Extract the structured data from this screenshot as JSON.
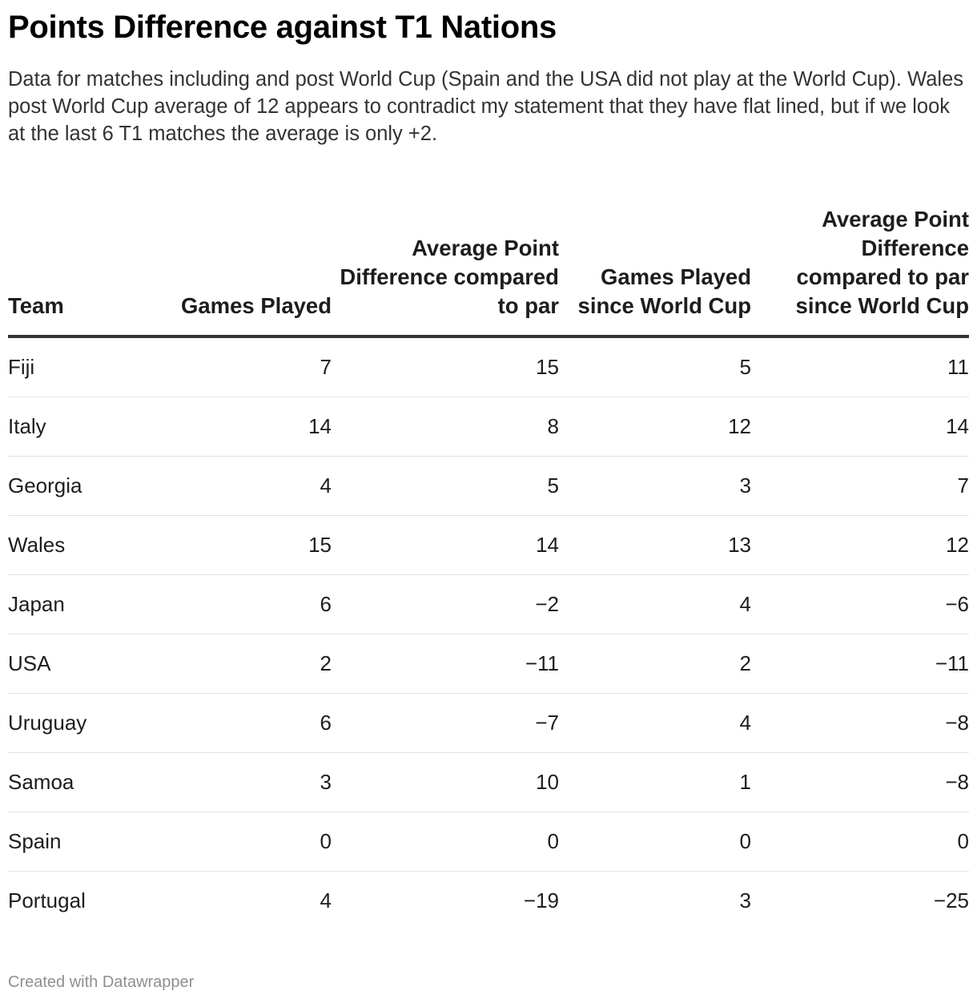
{
  "title": "Points Difference against T1 Nations",
  "subtitle": "Data for matches including and post World Cup (Spain and the USA did not play at the World Cup). Wales post World Cup average of 12 appears to contradict my statement that they have flat lined, but if we look at the last 6 T1 matches the average is only +2.",
  "footer": "Created with Datawrapper",
  "chart_data": {
    "type": "table",
    "title": "Points Difference against T1 Nations",
    "columns": [
      "Team",
      "Games Played",
      "Average Point Difference compared to par",
      "Games Played since World Cup",
      "Average Point Difference compared to par since World Cup"
    ],
    "rows": [
      [
        "Fiji",
        "7",
        "15",
        "5",
        "11"
      ],
      [
        "Italy",
        "14",
        "8",
        "12",
        "14"
      ],
      [
        "Georgia",
        "4",
        "5",
        "3",
        "7"
      ],
      [
        "Wales",
        "15",
        "14",
        "13",
        "12"
      ],
      [
        "Japan",
        "6",
        "−2",
        "4",
        "−6"
      ],
      [
        "USA",
        "2",
        "−11",
        "2",
        "−11"
      ],
      [
        "Uruguay",
        "6",
        "−7",
        "4",
        "−8"
      ],
      [
        "Samoa",
        "3",
        "10",
        "1",
        "−8"
      ],
      [
        "Spain",
        "0",
        "0",
        "0",
        "0"
      ],
      [
        "Portugal",
        "4",
        "−19",
        "3",
        "−25"
      ]
    ]
  }
}
